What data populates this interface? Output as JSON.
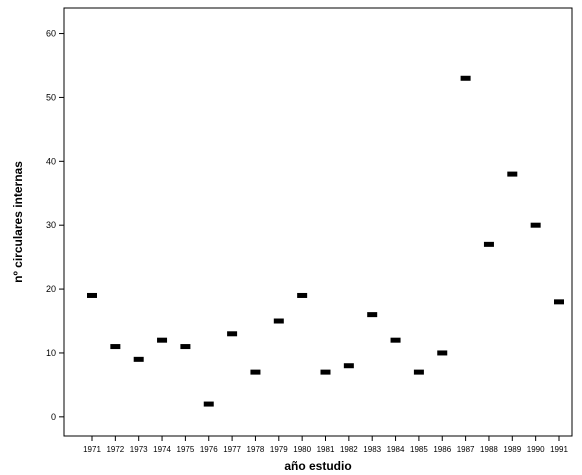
{
  "chart_data": {
    "type": "scatter",
    "title": "",
    "xlabel": "año estudio",
    "ylabel": "nº circulares internas",
    "categories": [
      "1971",
      "1972",
      "1973",
      "1974",
      "1975",
      "1976",
      "1977",
      "1978",
      "1979",
      "1980",
      "1981",
      "1982",
      "1983",
      "1984",
      "1985",
      "1986",
      "1987",
      "1988",
      "1989",
      "1990",
      "1991"
    ],
    "values": [
      19,
      11,
      9,
      12,
      11,
      2,
      13,
      7,
      15,
      19,
      7,
      8,
      16,
      12,
      7,
      10,
      53,
      27,
      38,
      30,
      18
    ],
    "ylim": [
      -3,
      64
    ],
    "yticks": [
      0,
      10,
      20,
      30,
      40,
      50,
      60
    ],
    "grid": false,
    "legend": "none",
    "marker_color": "#000000"
  }
}
